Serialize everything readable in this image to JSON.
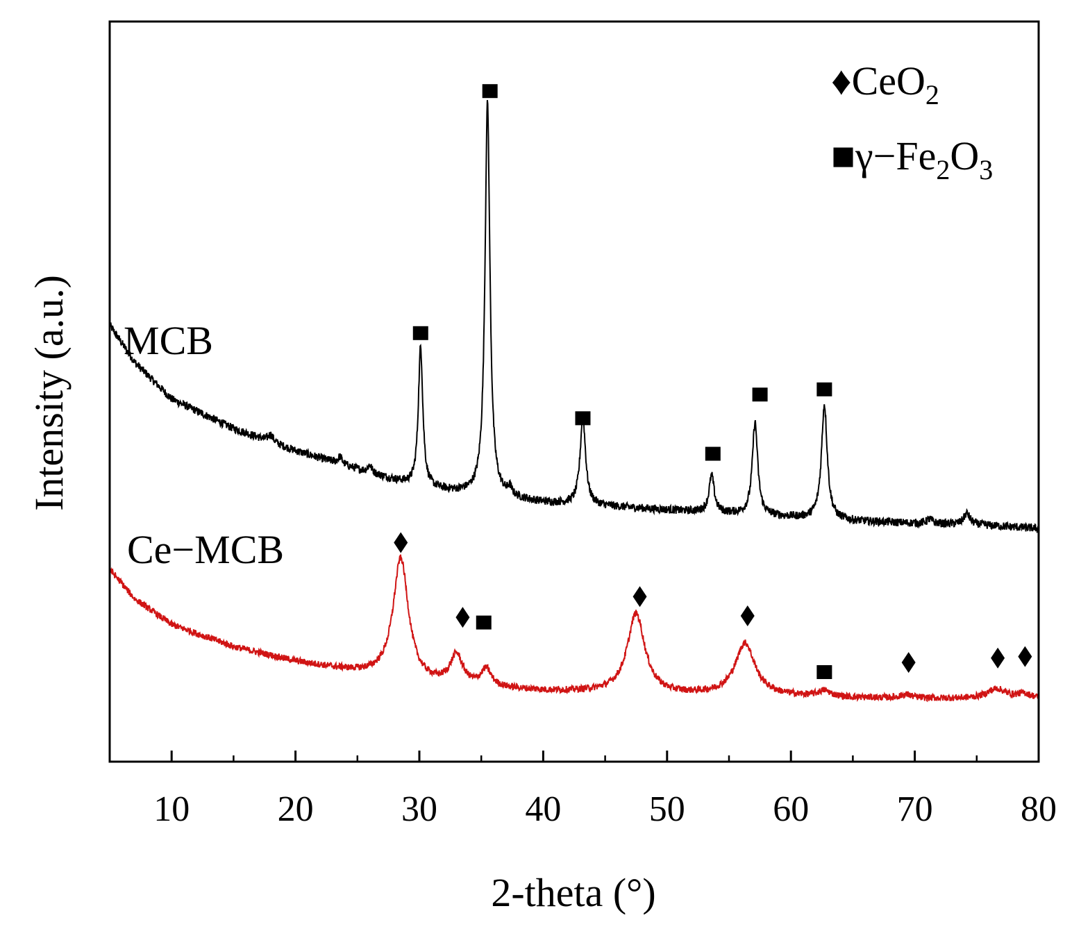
{
  "chart_data": {
    "type": "line",
    "title": "",
    "xlabel": "2-theta (°)",
    "ylabel": "Intensity (a.u.)",
    "xlim": [
      5,
      80
    ],
    "ylim": [
      0,
      100
    ],
    "y_ticks_labeled": false,
    "x_major_ticks": [
      10,
      20,
      30,
      40,
      50,
      60,
      70,
      80
    ],
    "x_minor_ticks": [
      15,
      25,
      35,
      45,
      55,
      65,
      75
    ],
    "x_tick_labels": [
      "10",
      "20",
      "30",
      "40",
      "50",
      "60",
      "70",
      "80"
    ],
    "legend_position": "top-right",
    "legend": [
      {
        "marker": "diamond",
        "label": "♦CeO",
        "sub": "2",
        "suffix": ""
      },
      {
        "marker": "square",
        "label": "■γ−Fe",
        "sub": "2",
        "mid": "O",
        "sub2": "3"
      }
    ],
    "series": [
      {
        "name": "MCB",
        "color": "#000000",
        "baseline": [
          [
            5,
            59
          ],
          [
            7,
            54
          ],
          [
            10,
            49
          ],
          [
            15,
            45
          ],
          [
            20,
            42
          ],
          [
            25,
            39.5
          ],
          [
            30,
            37
          ],
          [
            35,
            36
          ],
          [
            40,
            35
          ],
          [
            45,
            34.5
          ],
          [
            50,
            34
          ],
          [
            55,
            33.5
          ],
          [
            60,
            33
          ],
          [
            65,
            32.5
          ],
          [
            70,
            32.2
          ],
          [
            75,
            32
          ],
          [
            80,
            31.5
          ]
        ],
        "noise": 0.55,
        "peaks": [
          {
            "x": 30.1,
            "h": 19.0,
            "w": 0.22
          },
          {
            "x": 35.5,
            "h": 53.0,
            "w": 0.24
          },
          {
            "x": 43.2,
            "h": 12.0,
            "w": 0.26
          },
          {
            "x": 53.6,
            "h": 5.0,
            "w": 0.25
          },
          {
            "x": 57.1,
            "h": 12.5,
            "w": 0.26
          },
          {
            "x": 62.7,
            "h": 15.5,
            "w": 0.28
          },
          {
            "x": 74.2,
            "h": 1.5,
            "w": 0.3
          },
          {
            "x": 23.6,
            "h": 1.0,
            "w": 0.2
          },
          {
            "x": 26.0,
            "h": 1.0,
            "w": 0.2
          },
          {
            "x": 18.0,
            "h": 1.0,
            "w": 0.25
          },
          {
            "x": 37.3,
            "h": 1.0,
            "w": 0.2
          },
          {
            "x": 71.2,
            "h": 0.6,
            "w": 0.3
          }
        ],
        "annotations": [
          {
            "marker": "square",
            "x": 30.1,
            "y": 57.9
          },
          {
            "marker": "square",
            "x": 35.7,
            "y": 90.6
          },
          {
            "marker": "square",
            "x": 43.2,
            "y": 46.4
          },
          {
            "marker": "square",
            "x": 53.7,
            "y": 41.6
          },
          {
            "marker": "square",
            "x": 57.5,
            "y": 49.6
          },
          {
            "marker": "square",
            "x": 62.7,
            "y": 50.3
          }
        ]
      },
      {
        "name": "Ce−MCB",
        "color": "#d01414",
        "baseline": [
          [
            5,
            26
          ],
          [
            7,
            22
          ],
          [
            10,
            18.5
          ],
          [
            15,
            15.5
          ],
          [
            20,
            13.5
          ],
          [
            25,
            12
          ],
          [
            30,
            10.5
          ],
          [
            35,
            10
          ],
          [
            40,
            9.5
          ],
          [
            45,
            9.3
          ],
          [
            50,
            9
          ],
          [
            55,
            9
          ],
          [
            60,
            8.8
          ],
          [
            65,
            8.6
          ],
          [
            70,
            8.5
          ],
          [
            75,
            8.5
          ],
          [
            80,
            8.5
          ]
        ],
        "noise": 0.45,
        "peaks": [
          {
            "x": 28.5,
            "h": 16.5,
            "w": 0.75
          },
          {
            "x": 33.0,
            "h": 4.0,
            "w": 0.6
          },
          {
            "x": 35.4,
            "h": 2.3,
            "w": 0.5
          },
          {
            "x": 47.5,
            "h": 10.8,
            "w": 0.85
          },
          {
            "x": 56.3,
            "h": 7.0,
            "w": 0.95
          },
          {
            "x": 62.7,
            "h": 0.8,
            "w": 0.6
          },
          {
            "x": 69.3,
            "h": 0.5,
            "w": 0.6
          },
          {
            "x": 76.6,
            "h": 1.3,
            "w": 0.9
          },
          {
            "x": 78.8,
            "h": 0.6,
            "w": 0.7
          }
        ],
        "annotations": [
          {
            "marker": "diamond",
            "x": 28.5,
            "y": 29.6
          },
          {
            "marker": "diamond",
            "x": 33.5,
            "y": 19.5
          },
          {
            "marker": "square",
            "x": 35.2,
            "y": 18.8
          },
          {
            "marker": "diamond",
            "x": 47.8,
            "y": 22.3
          },
          {
            "marker": "diamond",
            "x": 56.5,
            "y": 19.7
          },
          {
            "marker": "square",
            "x": 62.7,
            "y": 12.1
          },
          {
            "marker": "diamond",
            "x": 69.5,
            "y": 13.4
          },
          {
            "marker": "diamond",
            "x": 76.7,
            "y": 14.0
          },
          {
            "marker": "diamond",
            "x": 78.9,
            "y": 14.2
          }
        ]
      }
    ],
    "series_labels": [
      "MCB",
      "Ce−MCB"
    ]
  }
}
